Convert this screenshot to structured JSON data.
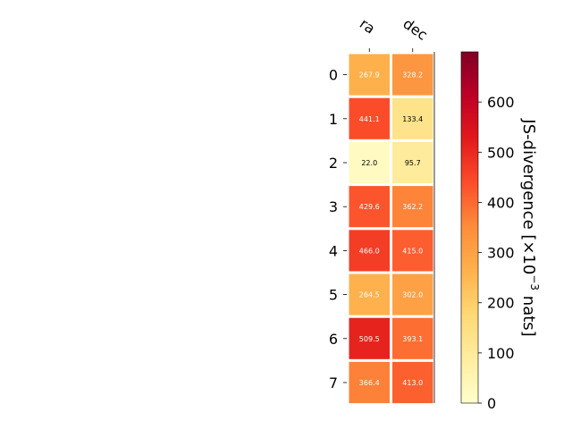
{
  "chart_data": {
    "type": "heatmap",
    "columns": [
      "ra",
      "dec"
    ],
    "rows": [
      "0",
      "1",
      "2",
      "3",
      "4",
      "5",
      "6",
      "7"
    ],
    "values": [
      [
        267.9,
        328.2
      ],
      [
        441.1,
        133.4
      ],
      [
        22.0,
        95.7
      ],
      [
        429.6,
        362.2
      ],
      [
        466.0,
        415.0
      ],
      [
        264.5,
        302.0
      ],
      [
        509.5,
        393.1
      ],
      [
        366.4,
        413.0
      ]
    ],
    "value_labels": [
      [
        "267.9",
        "328.2"
      ],
      [
        "441.1",
        "133.4"
      ],
      [
        "22.0",
        "95.7"
      ],
      [
        "429.6",
        "362.2"
      ],
      [
        "466.0",
        "415.0"
      ],
      [
        "264.5",
        "302.0"
      ],
      [
        "509.5",
        "393.1"
      ],
      [
        "366.4",
        "413.0"
      ]
    ],
    "colorbar": {
      "label_prefix": "JS-divergence [×10",
      "label_exp": "−3",
      "label_suffix": " nats]",
      "range": [
        0,
        700
      ],
      "ticks": [
        "0",
        "100",
        "200",
        "300",
        "400",
        "500",
        "600"
      ],
      "tick_values": [
        0,
        100,
        200,
        300,
        400,
        500,
        600
      ]
    },
    "colormap": "YlOrRd",
    "grid": false
  }
}
